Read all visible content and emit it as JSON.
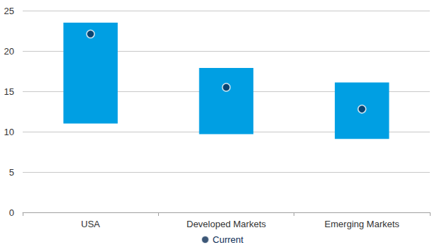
{
  "chart_data": {
    "type": "bar",
    "categories": [
      "USA",
      "Developed Markets",
      "Emerging Markets"
    ],
    "low": [
      11,
      9.7,
      9.1
    ],
    "high": [
      23.5,
      17.9,
      16.1
    ],
    "color": "#009fe3",
    "series": [
      {
        "name": "Current",
        "type": "scatter",
        "color": "#0b2d55",
        "marker": "circle",
        "values": [
          22.1,
          15.5,
          12.8
        ]
      }
    ],
    "ylim": [
      0,
      25
    ],
    "yticks": [
      0,
      5,
      10,
      15,
      20,
      25
    ],
    "grid": true,
    "legend": "bottom"
  }
}
